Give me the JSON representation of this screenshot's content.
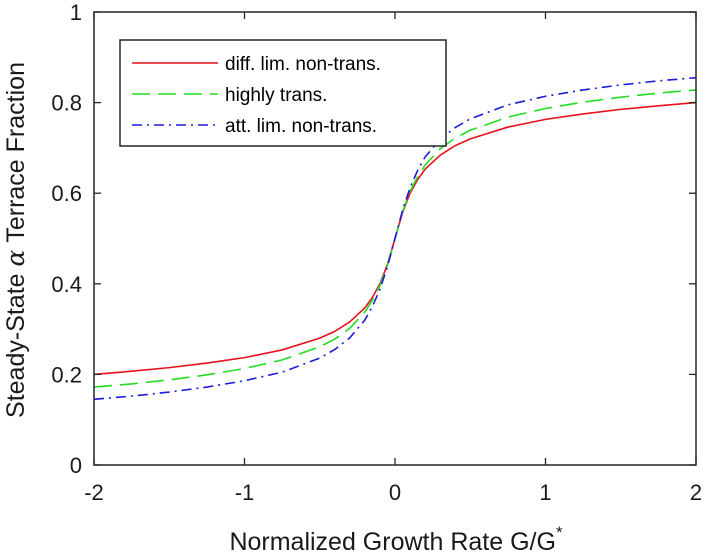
{
  "chart_data": {
    "type": "line",
    "title": "",
    "xlabel": "Normalized Growth Rate G/G",
    "xlabel_superscript": "*",
    "ylabel_prefix": "Steady-State ",
    "ylabel_symbol": "α",
    "ylabel_suffix": " Terrace Fraction",
    "xlim": [
      -2,
      2
    ],
    "ylim": [
      0,
      1
    ],
    "xticks": [
      -2,
      -1,
      0,
      1,
      2
    ],
    "xtick_labels": [
      "-2",
      "-1",
      "0",
      "1",
      "2"
    ],
    "yticks": [
      0,
      0.2,
      0.4,
      0.6,
      0.8,
      1
    ],
    "ytick_labels": [
      "0",
      "0.2",
      "0.4",
      "0.6",
      "0.8",
      "1"
    ],
    "grid": false,
    "legend_position": "top-left",
    "series": [
      {
        "name": "diff. lim. non-trans.",
        "color": "#e8101a",
        "dash": "solid",
        "x": [
          -2,
          -1.75,
          -1.5,
          -1.25,
          -1,
          -0.75,
          -0.5,
          -0.4,
          -0.3,
          -0.2,
          -0.15,
          -0.1,
          -0.05,
          0,
          0.05,
          0.1,
          0.15,
          0.2,
          0.3,
          0.4,
          0.5,
          0.75,
          1,
          1.25,
          1.5,
          1.75,
          2
        ],
        "y": [
          0.2,
          0.207,
          0.215,
          0.225,
          0.237,
          0.254,
          0.28,
          0.295,
          0.316,
          0.347,
          0.37,
          0.4,
          0.443,
          0.5,
          0.557,
          0.6,
          0.63,
          0.653,
          0.684,
          0.705,
          0.72,
          0.746,
          0.763,
          0.775,
          0.785,
          0.793,
          0.8
        ]
      },
      {
        "name": "highly trans.",
        "color": "#22dd22",
        "dash": "dashed",
        "x": [
          -2,
          -1.75,
          -1.5,
          -1.25,
          -1,
          -0.75,
          -0.5,
          -0.4,
          -0.3,
          -0.2,
          -0.15,
          -0.1,
          -0.05,
          0,
          0.05,
          0.1,
          0.15,
          0.2,
          0.3,
          0.4,
          0.5,
          0.75,
          1,
          1.25,
          1.5,
          1.75,
          2
        ],
        "y": [
          0.172,
          0.179,
          0.188,
          0.199,
          0.213,
          0.232,
          0.261,
          0.278,
          0.302,
          0.338,
          0.364,
          0.396,
          0.441,
          0.5,
          0.559,
          0.604,
          0.636,
          0.662,
          0.698,
          0.722,
          0.739,
          0.768,
          0.787,
          0.801,
          0.812,
          0.821,
          0.828
        ]
      },
      {
        "name": "att. lim. non-trans.",
        "color": "#1a1ae0",
        "dash": "dashdot",
        "x": [
          -2,
          -1.75,
          -1.5,
          -1.25,
          -1,
          -0.75,
          -0.5,
          -0.4,
          -0.3,
          -0.2,
          -0.15,
          -0.1,
          -0.05,
          0,
          0.05,
          0.1,
          0.15,
          0.2,
          0.3,
          0.4,
          0.5,
          0.75,
          1,
          1.25,
          1.5,
          1.75,
          2
        ],
        "y": [
          0.145,
          0.152,
          0.161,
          0.172,
          0.186,
          0.205,
          0.236,
          0.255,
          0.281,
          0.32,
          0.35,
          0.388,
          0.438,
          0.5,
          0.562,
          0.612,
          0.65,
          0.68,
          0.719,
          0.745,
          0.764,
          0.795,
          0.814,
          0.828,
          0.839,
          0.848,
          0.855
        ]
      }
    ]
  }
}
